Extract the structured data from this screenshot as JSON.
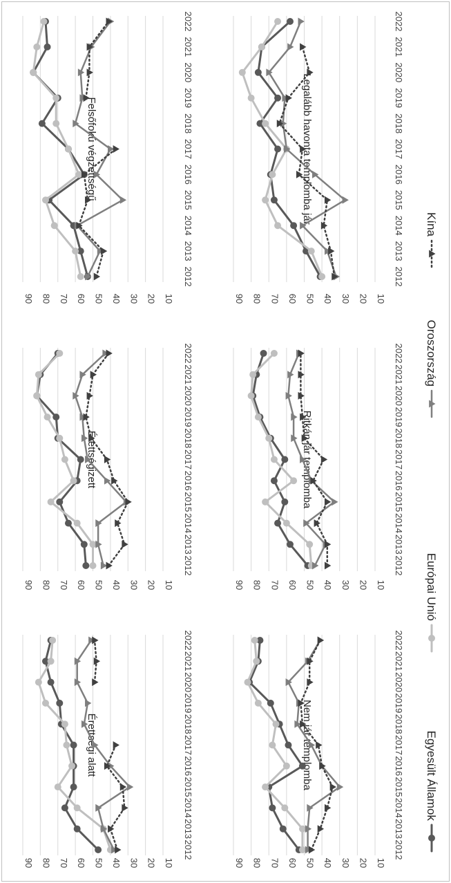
{
  "chart_data": {
    "type": "line",
    "x": [
      "2012",
      "2013",
      "2014",
      "2015",
      "2016",
      "2017",
      "2018",
      "2019",
      "2020",
      "2021",
      "2022"
    ],
    "ylim": [
      10,
      90
    ],
    "yticks": [
      10,
      20,
      30,
      40,
      50,
      60,
      70,
      80,
      90
    ],
    "grid": true,
    "legend_placement": "bottom",
    "series_names": [
      "Egyesült Államok",
      "Európai Unió",
      "Oroszország",
      "Kína"
    ],
    "series_colors": [
      "#595959",
      "#bfbfbf",
      "#7f7f7f",
      "#404040"
    ],
    "panels": [
      {
        "title": "Érettségi alatt",
        "series": [
          {
            "name": "Egyesült Államok",
            "values": [
              47,
              59,
              66,
              61,
              61,
              61,
              68,
              69,
              74,
              77,
              74
            ]
          },
          {
            "name": "Európai Unió",
            "values": [
              40,
              44,
              59,
              70,
              62,
              65,
              66,
              77,
              81,
              74,
              73
            ]
          },
          {
            "name": "Oroszország",
            "values": [
              38,
              44,
              47,
              29,
              40,
              49,
              55,
              53,
              59,
              59,
              51
            ]
          },
          {
            "name": "Kína",
            "values": [
              36,
              40,
              32,
              33,
              42,
              37,
              null,
              null,
              49,
              48,
              49
            ]
          }
        ]
      },
      {
        "title": "Érettségizett",
        "series": [
          {
            "name": "Egyesült Államok",
            "values": [
              54,
              55,
              64,
              69,
              59,
              57,
              70,
              71,
              82,
              80,
              70
            ]
          },
          {
            "name": "Európai Unió",
            "values": [
              50,
              50,
              59,
              74,
              61,
              66,
              69,
              76,
              82,
              81,
              69
            ]
          },
          {
            "name": "Oroszország",
            "values": [
              44,
              47,
              47,
              31,
              42,
              53,
              55,
              56,
              60,
              56,
              43
            ]
          },
          {
            "name": "Kína",
            "values": [
              41,
              32,
              36,
              30,
              38,
              42,
              51,
              54,
              52,
              50,
              41
            ]
          }
        ]
      },
      {
        "title": "Felsőfokú végzettségű",
        "series": [
          {
            "name": "Egyesült Államok",
            "values": [
              53,
              57,
              61,
              75,
              55,
              64,
              79,
              70,
              84,
              76,
              77
            ]
          },
          {
            "name": "Európai Unió",
            "values": [
              57,
              60,
              72,
              77,
              58,
              64,
              71,
              71,
              84,
              82,
              78
            ]
          },
          {
            "name": "Oroszország",
            "values": [
              53,
              46,
              59,
              33,
              48,
              40,
              60,
              56,
              57,
              51,
              40
            ]
          },
          {
            "name": "Kína",
            "values": [
              48,
              44,
              58,
              53,
              55,
              37,
              null,
              54,
              52,
              52,
              41
            ]
          }
        ]
      },
      {
        "title": "Nem jár templomba",
        "series": [
          {
            "name": "Egyesült Államok",
            "values": [
              53,
              62,
              68,
              70,
              51,
              59,
              64,
              69,
              81,
              76,
              75
            ]
          },
          {
            "name": "Európai Unió",
            "values": [
              51,
              51,
              61,
              72,
              60,
              68,
              66,
              76,
              82,
              77,
              78
            ]
          },
          {
            "name": "Oroszország",
            "values": [
              48,
              48,
              47,
              30,
              40,
              46,
              54,
              53,
              59,
              48,
              41
            ]
          },
          {
            "name": "Kína",
            "values": [
              46,
              41,
              37,
              34,
              40,
              42,
              51,
              52,
              47,
              47,
              41
            ]
          }
        ]
      },
      {
        "title": "Ritkán jár templomba",
        "series": [
          {
            "name": "Egyesült Államok",
            "values": [
              48,
              58,
              65,
              61,
              67,
              61,
              69,
              75,
              79,
              77,
              73
            ]
          },
          {
            "name": "Európai Unió",
            "values": [
              46,
              47,
              60,
              72,
              56,
              67,
              70,
              76,
              80,
              79,
              67
            ]
          },
          {
            "name": "Oroszország",
            "values": [
              44,
              38,
              49,
              33,
              46,
              51,
              56,
              56,
              59,
              58,
              53
            ]
          },
          {
            "name": "Kína",
            "values": [
              37,
              37,
              43,
              37,
              45,
              39,
              50,
              51,
              52,
              52,
              52
            ]
          }
        ]
      },
      {
        "title": "Legalább havonta templomba jár",
        "series": [
          {
            "name": "Egyesült Államok",
            "values": [
              41,
              49,
              56,
              67,
              69,
              65,
              75,
              65,
              76,
              74,
              58
            ]
          },
          {
            "name": "Európai Unió",
            "values": [
              40,
              46,
              65,
              72,
              68,
              60,
              72,
              80,
              85,
              74,
              65
            ]
          },
          {
            "name": "Oroszország",
            "values": [
              32,
              37,
              51,
              27,
              44,
              60,
              62,
              61,
              70,
              58,
              52
            ]
          },
          {
            "name": "Kína",
            "values": [
              33,
              35,
              39,
              37,
              53,
              51,
              64,
              59,
              47,
              51,
              null
            ]
          }
        ]
      }
    ]
  }
}
